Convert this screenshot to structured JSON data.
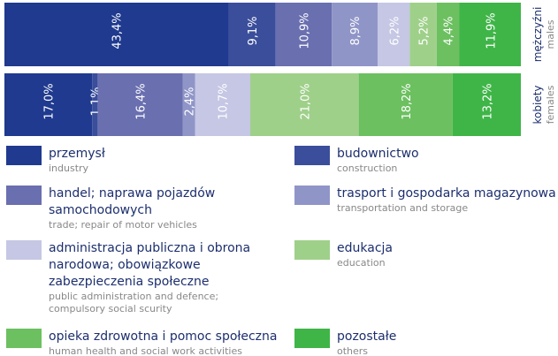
{
  "chart_data": {
    "type": "stacked_bar_100",
    "categories": [
      "mężczyźni",
      "kobiety"
    ],
    "categories_en": [
      "males",
      "females"
    ],
    "series": [
      {
        "name": "przemysł",
        "name_en": "industry",
        "color": "#1f3a8f",
        "values": [
          43.4,
          17.0
        ],
        "value_labels": [
          "43,4%",
          "17,0%"
        ]
      },
      {
        "name": "budownictwo",
        "name_en": "construction",
        "color": "#3b4e9b",
        "values": [
          9.1,
          1.1
        ],
        "value_labels": [
          "9,1%",
          "1,1%"
        ]
      },
      {
        "name": "handel; naprawa pojazdów samochodowych",
        "name_en": "trade; repair of motor vehicles",
        "color": "#6a6fb0",
        "values": [
          10.9,
          16.4
        ],
        "value_labels": [
          "10,9%",
          "16,4%"
        ]
      },
      {
        "name": "trasport i gospodarka magazynowa",
        "name_en": "transportation and storage",
        "color": "#9095c8",
        "values": [
          8.9,
          2.4
        ],
        "value_labels": [
          "8,9%",
          "2,4%"
        ]
      },
      {
        "name": "administracja publiczna i obrona narodowa; obowiązkowe zabezpieczenia społeczne",
        "name_en": "public administration and defence; compulsory social scurity",
        "color": "#c5c7e4",
        "values": [
          6.2,
          10.7
        ],
        "value_labels": [
          "6,2%",
          "10,7%"
        ]
      },
      {
        "name": "edukacja",
        "name_en": "education",
        "color": "#9fd08a",
        "values": [
          5.2,
          21.0
        ],
        "value_labels": [
          "5,2%",
          "21,0%"
        ]
      },
      {
        "name": "opieka zdrowotna i pomoc społeczna",
        "name_en": "human health and social work activities",
        "color": "#6cc060",
        "values": [
          4.4,
          18.2
        ],
        "value_labels": [
          "4,4%",
          "18,2%"
        ]
      },
      {
        "name": "pozostałe",
        "name_en": "others",
        "color": "#3fb548",
        "values": [
          11.9,
          13.2
        ],
        "value_labels": [
          "11,9%",
          "13,2%"
        ]
      }
    ]
  }
}
